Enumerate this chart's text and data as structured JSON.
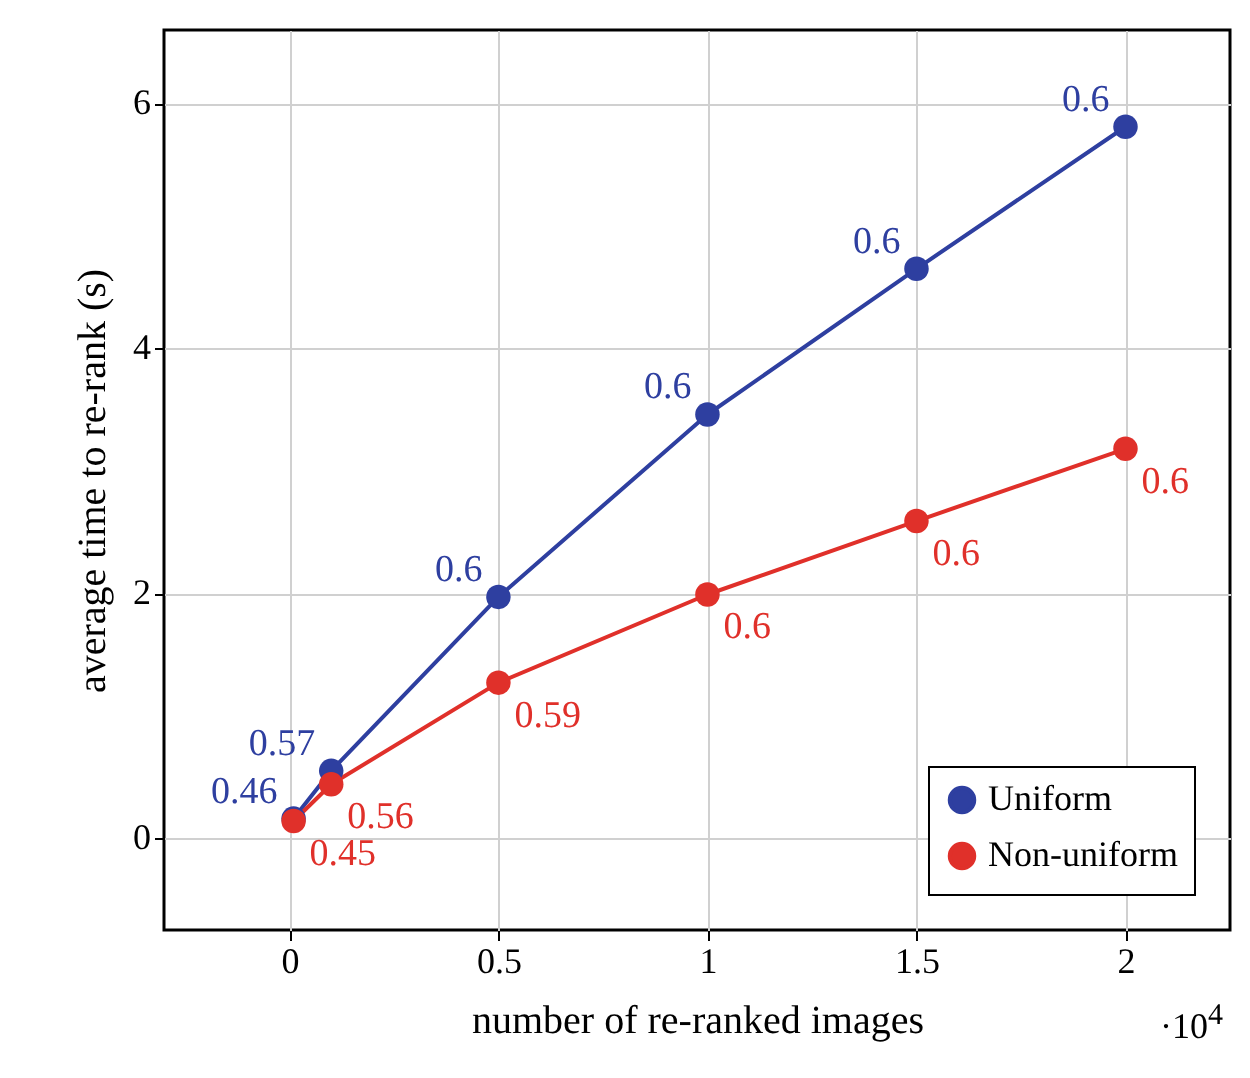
{
  "chart_data": {
    "type": "line",
    "xlabel": "number of re-ranked images",
    "ylabel": "average time to re-rank (s)",
    "annotations": [
      "·10$^{4}$",
      {
        "text": "0.46",
        "x": 0.01,
        "y": 0.16
      },
      {
        "text": "0.57",
        "x": 0.1,
        "y": 0.55
      },
      {
        "text": "0.6",
        "x": 0.5,
        "y": 1.97
      },
      {
        "text": "0.6",
        "x": 1,
        "y": 3.46
      },
      {
        "text": "0.6",
        "x": 1.5,
        "y": 4.65
      },
      {
        "text": "0.6",
        "x": 2,
        "y": 5.81
      },
      {
        "text": "0.45",
        "x": 0.01,
        "y": 0.14
      },
      {
        "text": "0.56",
        "x": 0.1,
        "y": 0.44
      },
      {
        "text": "0.59",
        "x": 0.5,
        "y": 1.27
      },
      {
        "text": "0.6",
        "x": 1,
        "y": 1.99
      },
      {
        "text": "0.6",
        "x": 1.5,
        "y": 2.59
      },
      {
        "text": "0.6",
        "x": 2,
        "y": 3.18
      }
    ],
    "xlim": [
      -0.3,
      2.25
    ],
    "xticks": [
      0,
      0.5,
      1,
      1.5,
      2
    ],
    "ylim": [
      -0.75,
      6.6
    ],
    "yticks": [
      0,
      2,
      4,
      6
    ],
    "grid": true,
    "legend": "bottom right",
    "marker": "circle",
    "line_style": "solid",
    "series": [
      {
        "name": "Uniform",
        "color": "#2e3fa0",
        "x": [
          0.01,
          0.1,
          0.5,
          1,
          1.5,
          2
        ],
        "values": [
          0.16,
          0.55,
          1.97,
          3.46,
          4.65,
          5.81
        ]
      },
      {
        "name": "Non-uniform",
        "color": "#e0302a",
        "x": [
          0.01,
          0.1,
          0.5,
          1,
          1.5,
          2
        ],
        "values": [
          0.14,
          0.44,
          1.27,
          1.99,
          2.59,
          3.18
        ]
      }
    ]
  }
}
